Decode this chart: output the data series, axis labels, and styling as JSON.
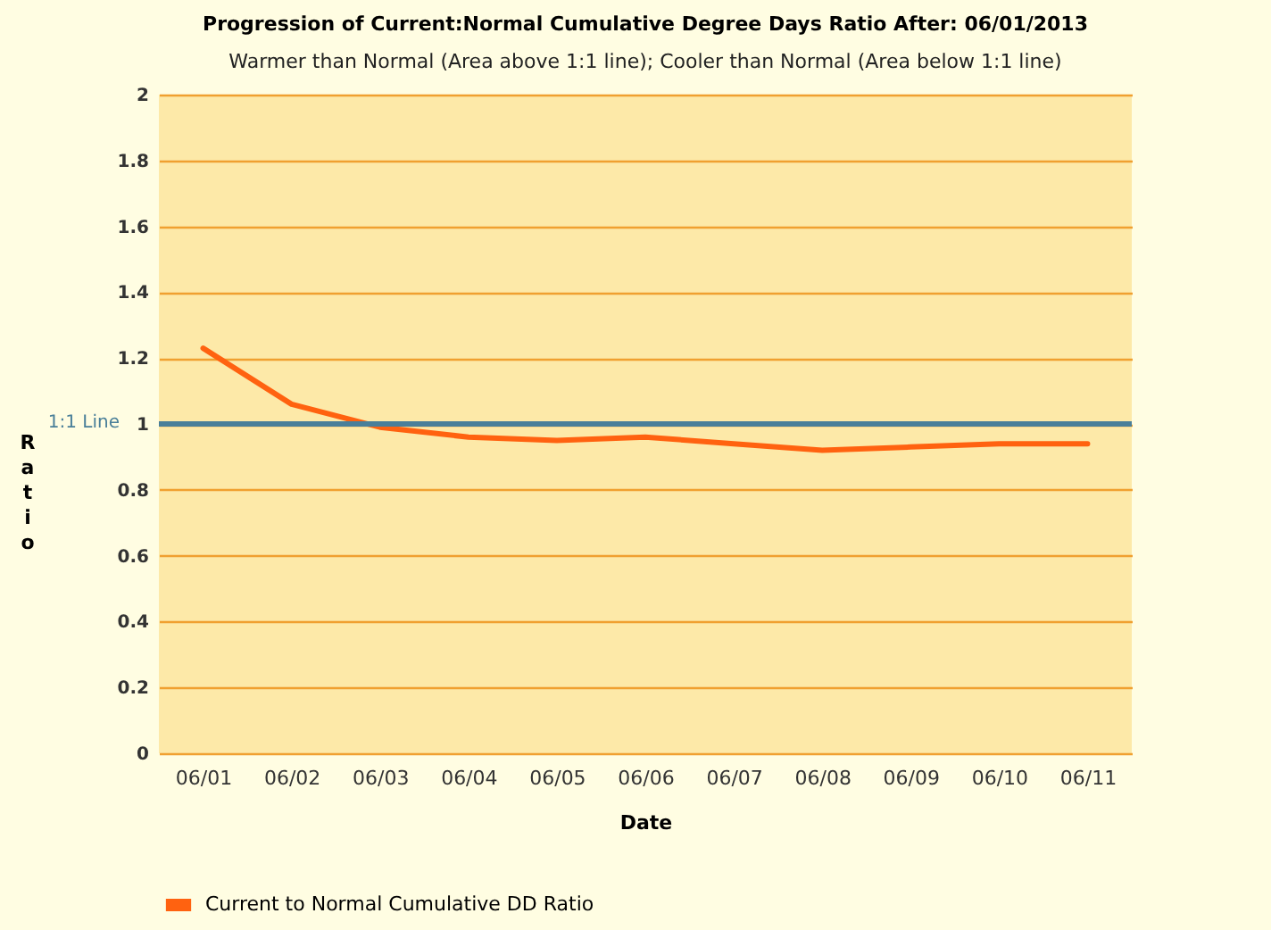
{
  "chart_data": {
    "type": "line",
    "title": "Progression of Current:Normal Cumulative Degree Days Ratio After: 06/01/2013",
    "subtitle": "Warmer than Normal (Area above 1:1 line); Cooler than Normal (Area below 1:1 line)",
    "xlabel": "Date",
    "ylabel": "Ratio",
    "categories": [
      "06/01",
      "06/02",
      "06/03",
      "06/04",
      "06/05",
      "06/06",
      "06/07",
      "06/08",
      "06/09",
      "06/10",
      "06/11"
    ],
    "series": [
      {
        "name": "Current to Normal Cumulative DD Ratio",
        "color": "#ff6210",
        "values": [
          1.23,
          1.06,
          0.99,
          0.96,
          0.95,
          0.96,
          0.94,
          0.92,
          0.93,
          0.94,
          0.94
        ]
      }
    ],
    "ylim": [
      0,
      2
    ],
    "yticks": [
      0,
      0.2,
      0.4,
      0.6,
      0.8,
      1,
      1.2,
      1.4,
      1.6,
      1.8,
      2
    ],
    "grid": "y",
    "legend": "bottom",
    "marker": "none",
    "line_style": "solid",
    "ref_lines": [
      {
        "axis": "y",
        "value": 1,
        "label": "1:1 Line",
        "color": "#4a7f99"
      }
    ]
  }
}
